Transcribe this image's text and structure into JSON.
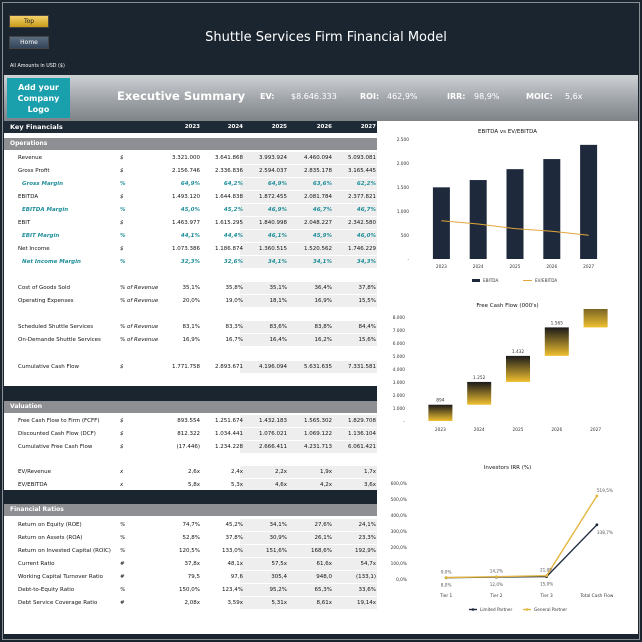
{
  "nav": {
    "top_label": "Top",
    "home_label": "Home"
  },
  "header": {
    "title": "Shuttle Services Firm Financial Model",
    "amounts_note": "All Amounts in  USD ($)"
  },
  "exec": {
    "logo_text": "Add your Company Logo",
    "title": "Executive Summary",
    "ev_label": "EV:",
    "ev_value": "$8.646.333",
    "roi_label": "ROI:",
    "roi_value": "462,9%",
    "irr_label": "IRR:",
    "irr_value": "98,9%",
    "moic_label": "MOIC:",
    "moic_value": "5,6x"
  },
  "key_financials": {
    "title": "Key Financials",
    "years": [
      "2023",
      "2024",
      "2025",
      "2026",
      "2027"
    ],
    "operations_title": "Operations",
    "rows": [
      {
        "label": "Revenue",
        "unit": "$",
        "values": [
          "3.321.000",
          "3.641.868",
          "3.993.924",
          "4.460.094",
          "5.093.081"
        ],
        "italic": false
      },
      {
        "label": "Gross Profit",
        "unit": "$",
        "values": [
          "2.156.746",
          "2.336.836",
          "2.594.037",
          "2.835.178",
          "3.165.445"
        ],
        "italic": false
      },
      {
        "label": "Gross Margin",
        "unit": "%",
        "values": [
          "64,9%",
          "64,2%",
          "64,9%",
          "63,6%",
          "62,2%"
        ],
        "italic": true
      },
      {
        "label": "EBITDA",
        "unit": "$",
        "values": [
          "1.493.120",
          "1.644.838",
          "1.872.455",
          "2.081.784",
          "2.377.821"
        ],
        "italic": false
      },
      {
        "label": "EBITDA Margin",
        "unit": "%",
        "values": [
          "45,0%",
          "45,2%",
          "46,9%",
          "46,7%",
          "46,7%"
        ],
        "italic": true
      },
      {
        "label": "EBIT",
        "unit": "$",
        "values": [
          "1.463.977",
          "1.615.295",
          "1.840.998",
          "2.048.227",
          "2.342.580"
        ],
        "italic": false
      },
      {
        "label": "EBIT Margin",
        "unit": "%",
        "values": [
          "44,1%",
          "44,4%",
          "46,1%",
          "45,9%",
          "46,0%"
        ],
        "italic": true
      },
      {
        "label": "Net Income",
        "unit": "$",
        "values": [
          "1.073.386",
          "1.186.874",
          "1.360.515",
          "1.520.562",
          "1.746.229"
        ],
        "italic": false
      },
      {
        "label": "Net Income Margin",
        "unit": "%",
        "values": [
          "32,3%",
          "32,6%",
          "34,1%",
          "34,1%",
          "34,3%"
        ],
        "italic": true
      }
    ],
    "cost_rows": [
      {
        "label": "Cost of Goods Sold",
        "unit": "% of Revenue",
        "values": [
          "35,1%",
          "35,8%",
          "35,1%",
          "36,4%",
          "37,8%"
        ]
      },
      {
        "label": "Operating Expenses",
        "unit": "% of Revenue",
        "values": [
          "20,0%",
          "19,0%",
          "18,1%",
          "16,9%",
          "15,5%"
        ]
      }
    ],
    "service_rows": [
      {
        "label": "Scheduled Shuttle Services",
        "unit": "% of Revenue",
        "values": [
          "83,1%",
          "83,3%",
          "83,6%",
          "83,8%",
          "84,4%"
        ]
      },
      {
        "label": "On-Demande Shuttle Services",
        "unit": "% of Revenue",
        "values": [
          "16,9%",
          "16,7%",
          "16,4%",
          "16,2%",
          "15,6%"
        ]
      }
    ],
    "cumulative_row": {
      "label": "Cumulative Cash Flow",
      "unit": "$",
      "values": [
        "1.771.758",
        "2.893.671",
        "4.196.094",
        "5.631.635",
        "7.331.581"
      ]
    }
  },
  "valuation": {
    "title": "Valuation",
    "rows": [
      {
        "label": "Free Cash Flow to Firm (FCFF)",
        "unit": "$",
        "values": [
          "893.554",
          "1.251.674",
          "1.432.183",
          "1.565.302",
          "1.829.708"
        ]
      },
      {
        "label": "Discounted Cash Flow (DCF)",
        "unit": "$",
        "values": [
          "812.322",
          "1.034.441",
          "1.076.021",
          "1.069.122",
          "1.136.104"
        ]
      },
      {
        "label": "Cumulative Free Cash Flow",
        "unit": "$",
        "values": [
          "(17.446)",
          "1.234.228",
          "2.666.411",
          "4.231.713",
          "6.061.421"
        ]
      }
    ],
    "multiple_rows": [
      {
        "label": "EV/Revenue",
        "unit": "x",
        "values": [
          "2,6x",
          "2,4x",
          "2,2x",
          "1,9x",
          "1,7x"
        ]
      },
      {
        "label": "EV/EBITDA",
        "unit": "x",
        "values": [
          "5,8x",
          "5,3x",
          "4,6x",
          "4,2x",
          "3,6x"
        ]
      }
    ]
  },
  "ratios": {
    "title": "Financial Ratios",
    "rows": [
      {
        "label": "Return on Equity (ROE)",
        "unit": "%",
        "values": [
          "74,7%",
          "45,2%",
          "34,1%",
          "27,6%",
          "24,1%"
        ]
      },
      {
        "label": "Return on Assets (ROA)",
        "unit": "%",
        "values": [
          "52,8%",
          "37,8%",
          "30,9%",
          "26,1%",
          "23,3%"
        ]
      },
      {
        "label": "Return on Invested Capital (ROIC)",
        "unit": "%",
        "values": [
          "120,5%",
          "133,0%",
          "151,6%",
          "168,6%",
          "192,9%"
        ]
      },
      {
        "label": "Current Ratio",
        "unit": "#",
        "values": [
          "37,8x",
          "48,1x",
          "57,5x",
          "61,6x",
          "54,7x"
        ]
      },
      {
        "label": "Working Capital Turnover Ratio",
        "unit": "#",
        "values": [
          "79,5",
          "97,6",
          "305,4",
          "948,0",
          "(133,1)"
        ]
      },
      {
        "label": "Debt-to-Equity Ratio",
        "unit": "%",
        "values": [
          "150,0%",
          "123,4%",
          "95,2%",
          "65,3%",
          "33,6%"
        ]
      },
      {
        "label": "Debt Service Coverage Ratio",
        "unit": "#",
        "values": [
          "2,08x",
          "3,59x",
          "5,31x",
          "8,61x",
          "19,14x"
        ]
      }
    ]
  },
  "chart_data": [
    {
      "type": "bar",
      "title": "EBITDA  vs EV/EBITDA",
      "categories": [
        "2023",
        "2024",
        "2025",
        "2026",
        "2027"
      ],
      "yticks": [
        "2.500",
        "2.000",
        "1.500",
        "1.000",
        "500",
        "-"
      ],
      "ylim": [
        0,
        2500
      ],
      "series": [
        {
          "name": "EBITDA",
          "type": "bar",
          "values": [
            1493,
            1645,
            1872,
            2082,
            2378
          ],
          "color": "#1e2a3c"
        },
        {
          "name": "EV/EBITDA",
          "type": "line",
          "values": [
            5.8,
            5.3,
            4.6,
            4.2,
            3.6
          ],
          "color": "#e2a63a"
        }
      ],
      "legend": "bottom"
    },
    {
      "type": "bar",
      "title": "Free Cash Flow (000's)",
      "categories": [
        "2023",
        "2024",
        "2025",
        "2026",
        "2027"
      ],
      "yticks": [
        "8.000",
        "7.000",
        "6.000",
        "5.000",
        "4.000",
        "3.000",
        "2.000",
        "1.000",
        "-"
      ],
      "ylim": [
        0,
        8000
      ],
      "values": [
        894,
        1252,
        1432,
        1565,
        1830
      ],
      "data_labels": [
        "894",
        "1.252",
        "1.432",
        "1.565",
        "1.830"
      ]
    },
    {
      "type": "line",
      "title": "Investors IRR (%)",
      "categories": [
        "Tier 1",
        "Tier 2",
        "Tier 3",
        "Total Cash Flow"
      ],
      "yticks": [
        "600,0%",
        "500,0%",
        "400,0%",
        "300,0%",
        "200,0%",
        "100,0%",
        "0,0%"
      ],
      "ylim": [
        0,
        600
      ],
      "series": [
        {
          "name": "Limited Partner",
          "values": [
            8.0,
            12.0,
            15.0,
            338.7
          ],
          "labels": [
            "8,0%",
            "12,0%",
            "15,0%",
            "338,7%"
          ],
          "color": "#1e2a3c"
        },
        {
          "name": "General Partner",
          "values": [
            9.0,
            14.2,
            21.0,
            519.5
          ],
          "labels": [
            "9,0%",
            "14,2%",
            "21,0%",
            "519,5%"
          ],
          "color": "#e2b640"
        }
      ],
      "legend": "bottom"
    }
  ]
}
